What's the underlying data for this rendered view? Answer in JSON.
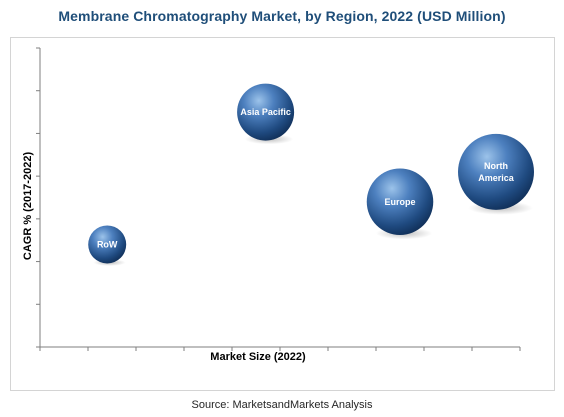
{
  "chart_data": {
    "type": "bubble",
    "title": "Membrane Chromatography Market, by Region, 2022 (USD Million)",
    "xlabel": "Market Size (2022)",
    "ylabel": "CAGR % (2017-2022)",
    "xlim": [
      0,
      10
    ],
    "ylim": [
      0,
      7
    ],
    "grid": false,
    "legend": "none",
    "bubble_color": "#2e5b94",
    "points": [
      {
        "label": "RoW",
        "x": 1.4,
        "y": 2.4,
        "size": 1.0
      },
      {
        "label": "Asia Pacific",
        "x": 4.7,
        "y": 5.5,
        "size": 1.5
      },
      {
        "label": "Europe",
        "x": 7.5,
        "y": 3.4,
        "size": 1.75
      },
      {
        "label": "North America",
        "x": 9.5,
        "y": 4.1,
        "size": 2.0
      }
    ]
  },
  "source": "Source: MarketsandMarkets Analysis"
}
